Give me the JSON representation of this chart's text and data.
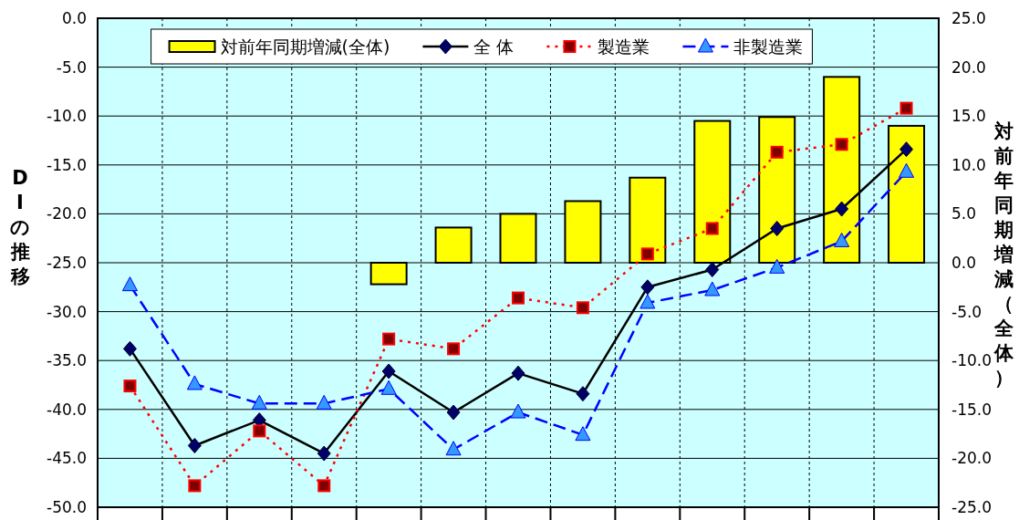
{
  "chart_data": {
    "type": "bar",
    "ylabel": "DIの推移",
    "y2label": "対前年同期増減（全体）",
    "categories": [
      null,
      null,
      null,
      null,
      null,
      null,
      null,
      null,
      null,
      null,
      null,
      null,
      null
    ],
    "ylim": [
      -50,
      0
    ],
    "yticks": [
      {
        "value": -50,
        "label": "-50.0"
      },
      {
        "value": -45,
        "label": "-45.0"
      },
      {
        "value": -40,
        "label": "-40.0"
      },
      {
        "value": -35,
        "label": "-35.0"
      },
      {
        "value": -30,
        "label": "-30.0"
      },
      {
        "value": -25,
        "label": "-25.0"
      },
      {
        "value": -20,
        "label": "-20.0"
      },
      {
        "value": -15,
        "label": "-15.0"
      },
      {
        "value": -10,
        "label": "-10.0"
      },
      {
        "value": -5,
        "label": "-5.0"
      },
      {
        "value": 0,
        "label": "0.0"
      }
    ],
    "y2lim": [
      -25,
      25
    ],
    "y2ticks": [
      {
        "value": -25,
        "label": "-25.0"
      },
      {
        "value": -20,
        "label": "-20.0"
      },
      {
        "value": -15,
        "label": "-15.0"
      },
      {
        "value": -10,
        "label": "-10.0"
      },
      {
        "value": -5,
        "label": "-5.0"
      },
      {
        "value": 0,
        "label": "0.0"
      },
      {
        "value": 5,
        "label": "5.0"
      },
      {
        "value": 10,
        "label": "10.0"
      },
      {
        "value": 15,
        "label": "15.0"
      },
      {
        "value": 20,
        "label": "20.0"
      },
      {
        "value": 25,
        "label": "25.0"
      }
    ],
    "grid": true,
    "legend": "top",
    "series": [
      {
        "name": "対前年同期増減(全体)",
        "axis": "y2",
        "color": "#ffff00",
        "values": [
          null,
          null,
          null,
          null,
          -2.2,
          3.6,
          5.0,
          6.3,
          8.7,
          14.5,
          14.9,
          19.0,
          14.0
        ]
      },
      {
        "name": "全 体",
        "type": "line",
        "color": "#000000",
        "marker": "diamond",
        "line_style": "solid",
        "values": [
          -33.8,
          -43.7,
          -41.1,
          -44.5,
          -36.1,
          -40.3,
          -36.3,
          -38.4,
          -27.5,
          -25.7,
          -21.5,
          -19.5,
          -13.4
        ]
      },
      {
        "name": "製造業",
        "type": "line",
        "color": "#ff0000",
        "marker": "square",
        "line_style": "dotted",
        "values": [
          -37.6,
          -47.8,
          -42.2,
          -47.8,
          -32.8,
          -33.8,
          -28.6,
          -29.6,
          -24.1,
          -21.5,
          -13.7,
          -12.9,
          -9.2
        ]
      },
      {
        "name": "非製造業",
        "type": "line",
        "color": "#0000ff",
        "marker": "triangle",
        "line_style": "dashed",
        "values": [
          -27.3,
          -37.4,
          -39.4,
          -39.4,
          -37.9,
          -44.1,
          -40.3,
          -42.6,
          -29.1,
          -27.8,
          -25.5,
          -22.8,
          -15.7
        ]
      }
    ]
  }
}
